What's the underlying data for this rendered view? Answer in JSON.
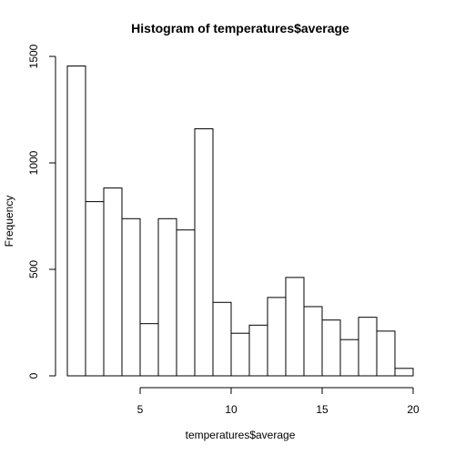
{
  "chart_data": {
    "type": "bar",
    "title": "Histogram of temperatures$average",
    "xlabel": "temperatures$average",
    "ylabel": "Frequency",
    "bins": [
      {
        "start": 1,
        "end": 2,
        "count": 1455
      },
      {
        "start": 2,
        "end": 3,
        "count": 818
      },
      {
        "start": 3,
        "end": 4,
        "count": 882
      },
      {
        "start": 4,
        "end": 5,
        "count": 738
      },
      {
        "start": 5,
        "end": 6,
        "count": 245
      },
      {
        "start": 6,
        "end": 7,
        "count": 738
      },
      {
        "start": 7,
        "end": 8,
        "count": 685
      },
      {
        "start": 8,
        "end": 9,
        "count": 1160
      },
      {
        "start": 9,
        "end": 10,
        "count": 345
      },
      {
        "start": 10,
        "end": 11,
        "count": 200
      },
      {
        "start": 11,
        "end": 12,
        "count": 238
      },
      {
        "start": 12,
        "end": 13,
        "count": 368
      },
      {
        "start": 13,
        "end": 14,
        "count": 462
      },
      {
        "start": 14,
        "end": 15,
        "count": 325
      },
      {
        "start": 15,
        "end": 16,
        "count": 262
      },
      {
        "start": 16,
        "end": 17,
        "count": 170
      },
      {
        "start": 17,
        "end": 18,
        "count": 275
      },
      {
        "start": 18,
        "end": 19,
        "count": 210
      },
      {
        "start": 19,
        "end": 20,
        "count": 35
      }
    ],
    "xlim": [
      1,
      20
    ],
    "ylim": [
      0,
      1500
    ],
    "x_ticks": [
      5,
      10,
      15,
      20
    ],
    "y_ticks": [
      0,
      500,
      1000,
      1500
    ],
    "x_tick_labels": [
      "5",
      "10",
      "15",
      "20"
    ],
    "y_tick_labels": [
      "0",
      "500",
      "1000",
      "1500"
    ],
    "grid": false,
    "legend": "none",
    "bar_fill": "#ffffff",
    "bar_stroke": "#000000"
  }
}
